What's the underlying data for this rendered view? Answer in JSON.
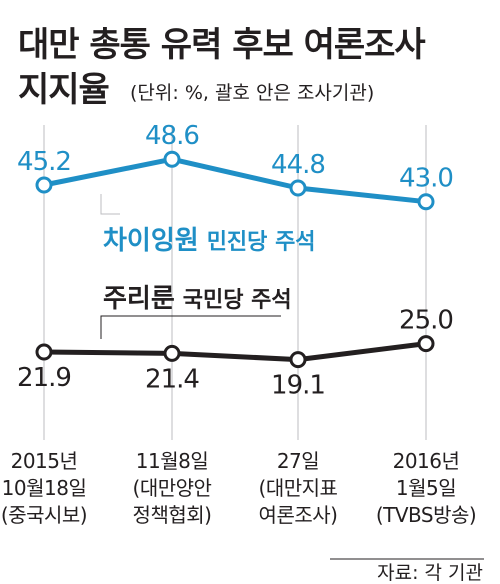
{
  "title_line1": "대만 총통 유력 후보 여론조사",
  "title_line2": "지지율",
  "unit_note": "(단위: %, 괄호 안은 조사기관)",
  "source": "자료: 각 기관",
  "colors": {
    "series_a": "#1f8fc6",
    "series_b": "#231f20",
    "gridline": "#bcbec0"
  },
  "chart_data": {
    "type": "line",
    "title": "대만 총통 유력 후보 여론조사 지지율",
    "categories": [
      [
        "2015년",
        "10월18일",
        "(중국시보)"
      ],
      [
        "11월8일",
        "(대만양안",
        "정책협회)"
      ],
      [
        "27일",
        "(대만지표",
        "여론조사)"
      ],
      [
        "2016년",
        "1월5일",
        "(TVBS방송)"
      ]
    ],
    "grid": "vertical",
    "series": [
      {
        "name": "차이잉원",
        "party": "민진당 주석",
        "values": [
          45.2,
          48.6,
          44.8,
          43.0
        ],
        "labels": [
          "45.2",
          "48.6",
          "44.8",
          "43.0"
        ]
      },
      {
        "name": "주리룬",
        "party": "국민당 주석",
        "values": [
          21.9,
          21.4,
          19.1,
          25.0
        ],
        "labels": [
          "21.9",
          "21.4",
          "19.1",
          "25.0"
        ]
      }
    ]
  }
}
